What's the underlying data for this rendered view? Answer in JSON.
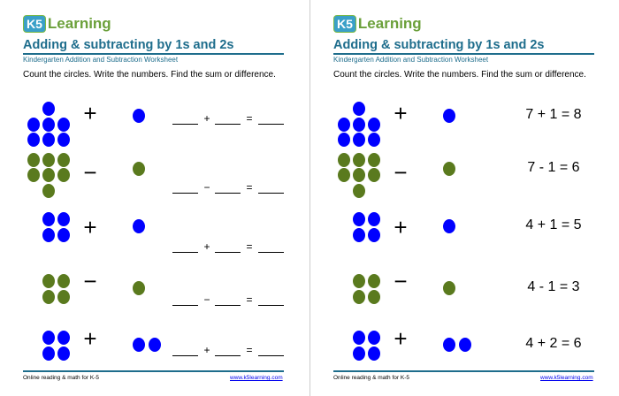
{
  "logo": {
    "k5": "K5",
    "learning": "Learning"
  },
  "title": "Adding & subtracting by 1s and 2s",
  "subtitle": "Kindergarten Addition and Subtraction Worksheet",
  "instructions": "Count the circles. Write the numbers. Find the sum or difference.",
  "footer": {
    "left": "Online reading & math for K-5",
    "link": "www.k5learning.com"
  },
  "colors": {
    "blue": "#0000ff",
    "green": "#5a7a1e",
    "title": "#1e6d8c"
  },
  "problems": [
    {
      "left": 7,
      "right": 1,
      "op": "+",
      "color": "blue",
      "answer": "7 + 1 = 8"
    },
    {
      "left": 7,
      "right": 1,
      "op": "−",
      "color": "green",
      "answer": "7 - 1 = 6"
    },
    {
      "left": 4,
      "right": 1,
      "op": "+",
      "color": "blue",
      "answer": "4 + 1 = 5"
    },
    {
      "left": 4,
      "right": 1,
      "op": "−",
      "color": "green",
      "answer": "4 - 1 = 3"
    },
    {
      "left": 4,
      "right": 2,
      "op": "+",
      "color": "blue",
      "answer": "4 + 2 = 6"
    }
  ],
  "pages": [
    {
      "name": "worksheet"
    },
    {
      "name": "answer-key"
    }
  ]
}
